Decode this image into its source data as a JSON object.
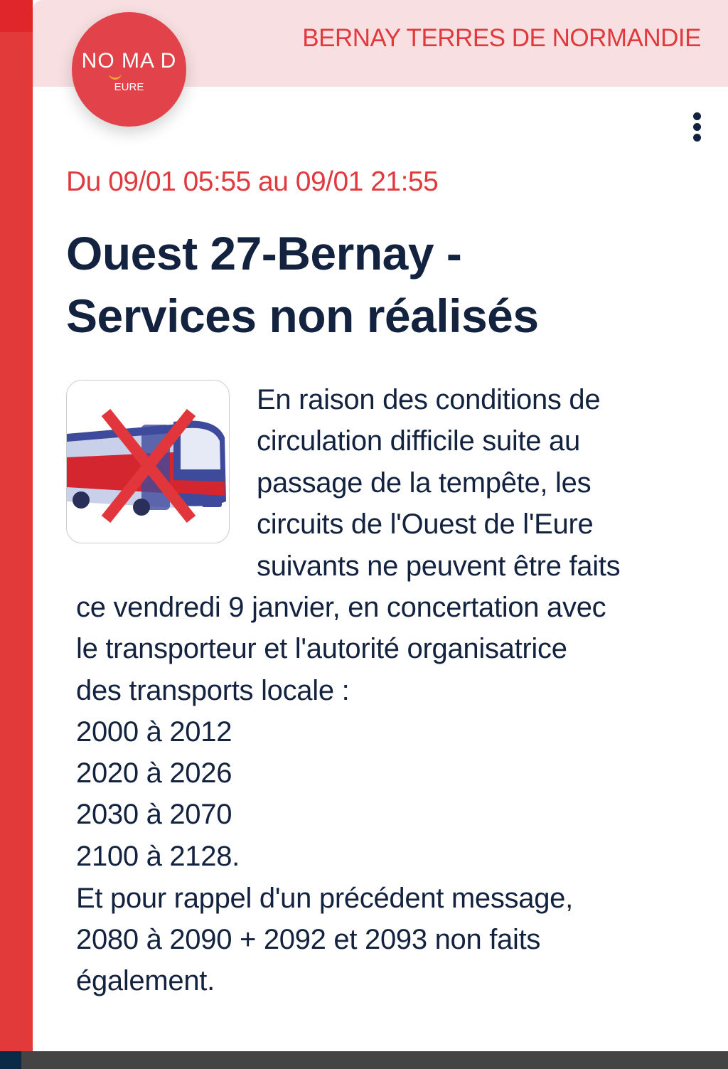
{
  "header": {
    "region": "BERNAY TERRES DE NORMANDIE"
  },
  "logo": {
    "brand": "NO MA D",
    "sub": "EURE"
  },
  "menu": {
    "icon": "more-vertical-icon"
  },
  "alert": {
    "date_range": "Du 09/01 05:55 au 09/01 21:55",
    "title_lines": [
      "Ouest 27-Bernay -",
      "Services non réalisés"
    ],
    "image": {
      "icon": "bus-cancelled-icon"
    },
    "body_lines": [
      "En raison des conditions de",
      "circulation difficile suite au",
      "passage de la tempête, les",
      "circuits de l'Ouest de l'Eure",
      "suivants ne peuvent être faits",
      "ce vendredi 9 janvier, en concertation avec",
      "le transporteur et l'autorité organisatrice",
      "des transports locale :",
      "2000 à 2012",
      "2020 à 2026",
      "2030 à 2070",
      "2100 à 2128.",
      "Et pour rappel d'un précédent message,",
      "2080 à 2090 + 2092 et 2093 non faits",
      "également."
    ]
  },
  "colors": {
    "accent": "#e0393e",
    "text": "#13223f",
    "header_bg": "#f8e0e2"
  }
}
